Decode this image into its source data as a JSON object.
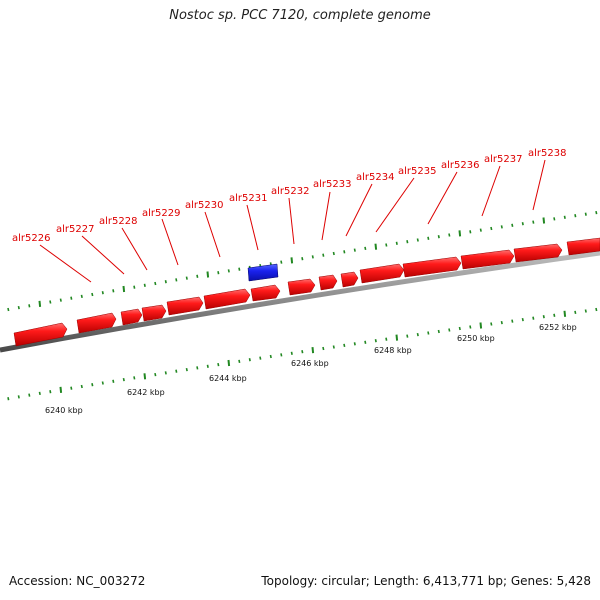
{
  "title": "Nostoc sp. PCC 7120, complete genome",
  "accession": "Accession: NC_003272",
  "topology": "Topology: circular; Length: 6,413,771 bp; Genes: 5,428",
  "colors": {
    "forward_gene": "#ee1111",
    "reverse_gene": "#1122dd",
    "backbone": "#888888",
    "ticks": "#228822",
    "gene_label": "#dd0000"
  },
  "gene_labels": [
    "alr5226",
    "alr5227",
    "alr5228",
    "alr5229",
    "alr5230",
    "alr5231",
    "alr5232",
    "alr5233",
    "alr5234",
    "alr5235",
    "alr5236",
    "alr5237",
    "alr5238"
  ],
  "scale_labels": [
    "6240 kbp",
    "6242 kbp",
    "6244 kbp",
    "6246 kbp",
    "6248 kbp",
    "6250 kbp",
    "6252 kbp"
  ]
}
